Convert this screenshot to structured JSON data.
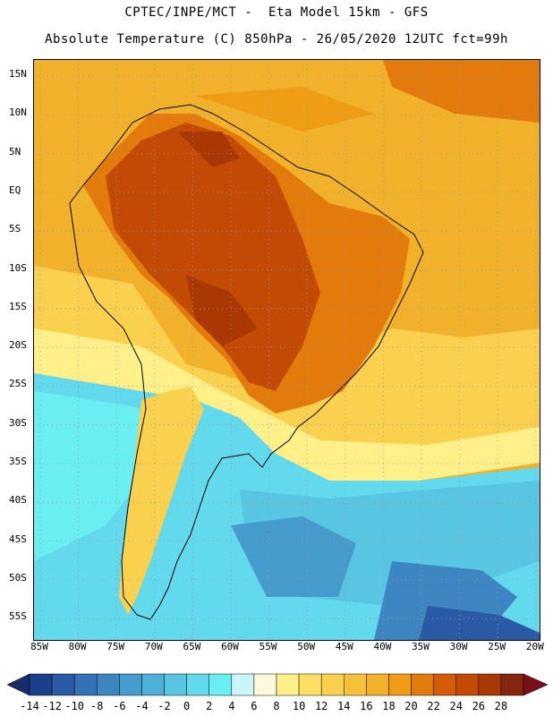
{
  "header": {
    "line1": "CPTEC/INPE/MCT -  Eta Model 15km - GFS",
    "line2": "Absolute Temperature (C) 850hPa - 26/05/2020 12UTC fct=99h"
  },
  "axes": {
    "lat_labels": [
      "15N",
      "10N",
      "5N",
      "EQ",
      "5S",
      "10S",
      "15S",
      "20S",
      "25S",
      "30S",
      "35S",
      "40S",
      "45S",
      "50S",
      "55S"
    ],
    "lon_labels": [
      "85W",
      "80W",
      "75W",
      "70W",
      "65W",
      "60W",
      "55W",
      "50W",
      "45W",
      "40W",
      "35W",
      "30W",
      "25W",
      "20W"
    ]
  },
  "colorbar": {
    "labels": [
      "-14",
      "-12",
      "-10",
      "-8",
      "-6",
      "-4",
      "-2",
      "0",
      "2",
      "4",
      "6",
      "8",
      "10",
      "12",
      "14",
      "16",
      "18",
      "20",
      "22",
      "24",
      "26",
      "28"
    ],
    "colors": [
      "#1c3f8c",
      "#2a5aa6",
      "#3471b5",
      "#3d86c1",
      "#469bcd",
      "#4eb0d8",
      "#58c5e2",
      "#62d9ec",
      "#6aeef2",
      "#ccf5fa",
      "#fff8dc",
      "#fff08a",
      "#ffe066",
      "#fad14e",
      "#f5c13a",
      "#f2b12a",
      "#ee9d14",
      "#e37b0c",
      "#d45c06",
      "#c24a05",
      "#a93804",
      "#862610"
    ],
    "under_color": "#1a2c6b",
    "over_color": "#7a0f1a"
  },
  "palette": {
    "ocean_cold": "#55dde9",
    "ocean_deep": "#3f9fd2",
    "warm": "#f2b12a",
    "hot": "#d45c06",
    "grid": "#9a9a9a"
  }
}
